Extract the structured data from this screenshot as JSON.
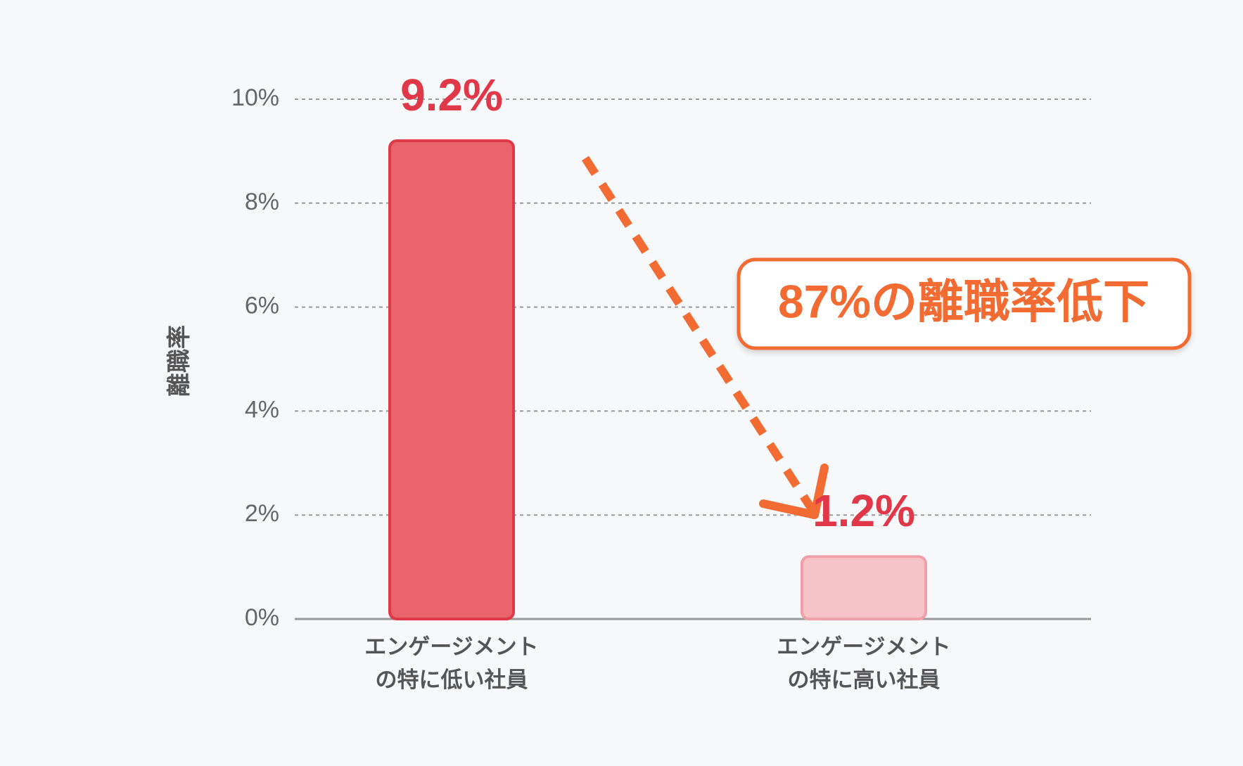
{
  "chart_data": {
    "type": "bar",
    "y_label": "離職率",
    "categories": [
      "エンゲージメント\nの特に低い社員",
      "エンゲージメント\nの特に高い社員"
    ],
    "values": [
      9.2,
      1.2
    ],
    "value_labels": [
      "9.2%",
      "1.2%"
    ],
    "colors": [
      "#e8636c",
      "#f6c3c7"
    ],
    "stroke_colors": [
      "#e03848",
      "#f0a0a8"
    ],
    "ylim": [
      0,
      10
    ],
    "yticks": [
      {
        "value": 0,
        "label": "0%"
      },
      {
        "value": 2,
        "label": "2%"
      },
      {
        "value": 4,
        "label": "4%"
      },
      {
        "value": 6,
        "label": "6%"
      },
      {
        "value": 8,
        "label": "8%"
      },
      {
        "value": 10,
        "label": "10%"
      }
    ],
    "grid": true,
    "annotation": "87%の離職率低下"
  }
}
